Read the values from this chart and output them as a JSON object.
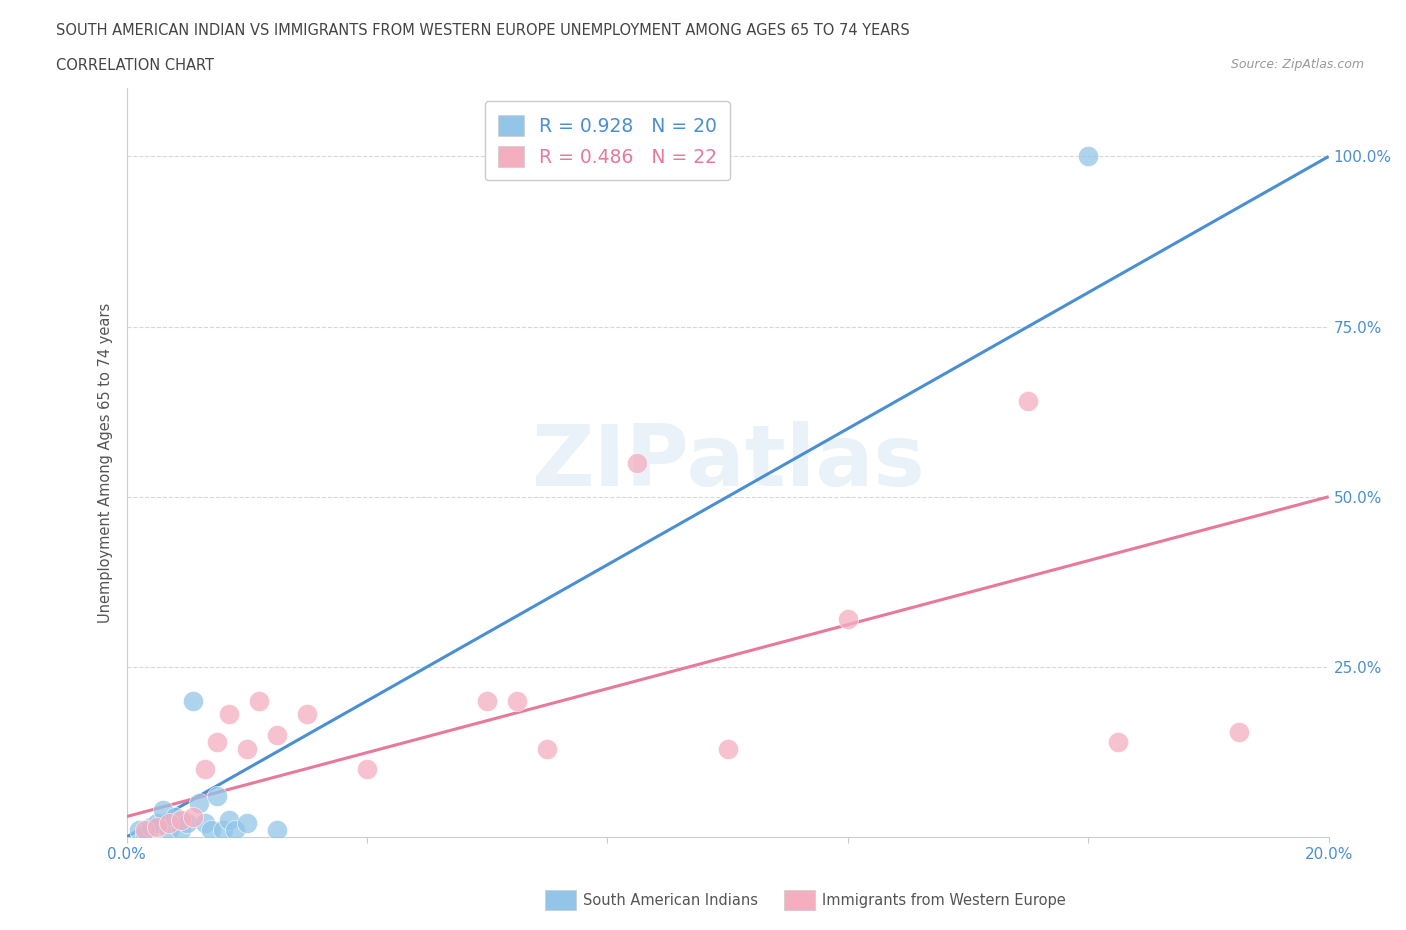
{
  "title_line1": "SOUTH AMERICAN INDIAN VS IMMIGRANTS FROM WESTERN EUROPE UNEMPLOYMENT AMONG AGES 65 TO 74 YEARS",
  "title_line2": "CORRELATION CHART",
  "source_text": "Source: ZipAtlas.com",
  "ylabel": "Unemployment Among Ages 65 to 74 years",
  "xlim": [
    0.0,
    0.2
  ],
  "ylim": [
    0.0,
    1.1
  ],
  "x_ticks": [
    0.0,
    0.04,
    0.08,
    0.12,
    0.16,
    0.2
  ],
  "x_tick_labels": [
    "0.0%",
    "",
    "",
    "",
    "",
    "20.0%"
  ],
  "y_ticks": [
    0.0,
    0.25,
    0.5,
    0.75,
    1.0
  ],
  "y_tick_labels": [
    "",
    "25.0%",
    "50.0%",
    "75.0%",
    "100.0%"
  ],
  "blue_r": "0.928",
  "blue_n": "20",
  "pink_r": "0.486",
  "pink_n": "22",
  "blue_color": "#92c5e8",
  "pink_color": "#f5aec0",
  "blue_line_color": "#4a8fd4",
  "pink_line_color": "#e8799a",
  "legend_label_blue": "South American Indians",
  "legend_label_pink": "Immigrants from Western Europe",
  "blue_scatter_x": [
    0.002,
    0.003,
    0.004,
    0.005,
    0.006,
    0.007,
    0.008,
    0.009,
    0.01,
    0.011,
    0.012,
    0.013,
    0.014,
    0.015,
    0.016,
    0.017,
    0.018,
    0.02,
    0.025,
    0.16
  ],
  "blue_scatter_y": [
    0.01,
    0.005,
    0.015,
    0.02,
    0.04,
    0.01,
    0.03,
    0.01,
    0.02,
    0.2,
    0.05,
    0.02,
    0.01,
    0.06,
    0.01,
    0.025,
    0.01,
    0.02,
    0.01,
    1.0
  ],
  "pink_scatter_x": [
    0.003,
    0.005,
    0.007,
    0.009,
    0.011,
    0.013,
    0.015,
    0.017,
    0.02,
    0.022,
    0.025,
    0.03,
    0.04,
    0.06,
    0.065,
    0.07,
    0.085,
    0.1,
    0.12,
    0.15,
    0.165,
    0.185
  ],
  "pink_scatter_y": [
    0.01,
    0.015,
    0.02,
    0.025,
    0.03,
    0.1,
    0.14,
    0.18,
    0.13,
    0.2,
    0.15,
    0.18,
    0.1,
    0.2,
    0.2,
    0.13,
    0.55,
    0.13,
    0.32,
    0.64,
    0.14,
    0.155
  ],
  "blue_line_x0": 0.0,
  "blue_line_y0": 0.0,
  "blue_line_x1": 0.2,
  "blue_line_y1": 1.0,
  "pink_line_x0": 0.0,
  "pink_line_y0": 0.03,
  "pink_line_x1": 0.2,
  "pink_line_y1": 0.5,
  "watermark_text": "ZIPatlas",
  "background_color": "#ffffff",
  "grid_color": "#d8d8d8"
}
